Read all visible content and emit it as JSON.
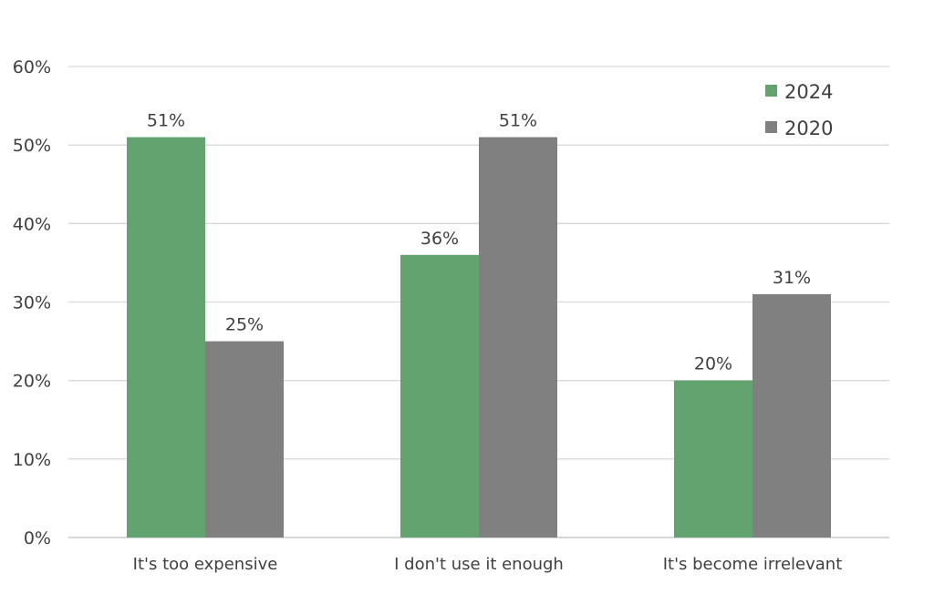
{
  "chart_data": {
    "type": "bar",
    "categories": [
      "It's too expensive",
      "I don't use it enough",
      "It's become irrelevant"
    ],
    "series": [
      {
        "name": "2024",
        "values": [
          51,
          36,
          20
        ],
        "labels": [
          "51%",
          "36%",
          "20%"
        ],
        "color": "#62a36f"
      },
      {
        "name": "2020",
        "values": [
          25,
          51,
          31
        ],
        "labels": [
          "25%",
          "51%",
          "31%"
        ],
        "color": "#808080"
      }
    ],
    "yticks": [
      "0%",
      "10%",
      "20%",
      "30%",
      "40%",
      "50%",
      "60%"
    ],
    "ylim": [
      0,
      60
    ],
    "grid": true,
    "legend": "top-right",
    "title": "",
    "xlabel": "",
    "ylabel": ""
  }
}
